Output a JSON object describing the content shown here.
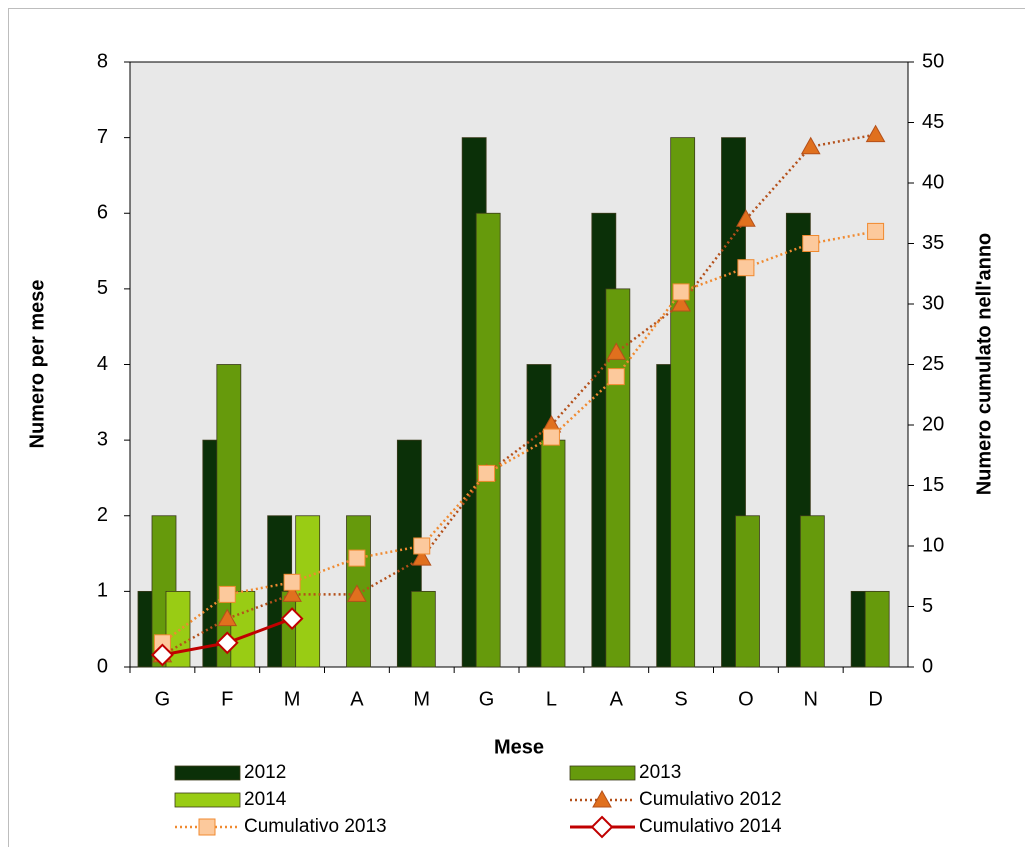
{
  "chart_data": {
    "type": "bar",
    "xlabel": "Mese",
    "ylabel": "Numero per mese",
    "y2label": "Numero cumulato nell'anno",
    "categories": [
      "G",
      "F",
      "M",
      "A",
      "M",
      "G",
      "L",
      "A",
      "S",
      "O",
      "N",
      "D"
    ],
    "ylim": [
      0,
      8
    ],
    "yticks": [
      0,
      1,
      2,
      3,
      4,
      5,
      6,
      7,
      8
    ],
    "y2lim": [
      0,
      50
    ],
    "y2ticks": [
      0,
      5,
      10,
      15,
      20,
      25,
      30,
      35,
      40,
      45,
      50
    ],
    "series": [
      {
        "name": "2012",
        "type": "bar",
        "color": "#0b3008",
        "values": [
          1,
          3,
          2,
          0,
          3,
          7,
          4,
          6,
          4,
          7,
          6,
          1
        ]
      },
      {
        "name": "2013",
        "type": "bar",
        "color": "#669a0c",
        "values": [
          2,
          4,
          1,
          2,
          1,
          6,
          3,
          5,
          7,
          2,
          2,
          1
        ]
      },
      {
        "name": "2014",
        "type": "bar",
        "color": "#99cc14",
        "values": [
          1,
          1,
          2,
          null,
          null,
          null,
          null,
          null,
          null,
          null,
          null,
          null
        ]
      },
      {
        "name": "Cumulativo 2012",
        "type": "line",
        "axis": "y2",
        "marker": "triangle",
        "color": "#b4501a",
        "marker_color": "#e0701e",
        "dash": true,
        "values": [
          1,
          4,
          6,
          6,
          9,
          16,
          20,
          26,
          30,
          37,
          43,
          44
        ]
      },
      {
        "name": "Cumulativo 2013",
        "type": "line",
        "axis": "y2",
        "marker": "square",
        "color": "#f08a30",
        "marker_color": "#fcc99c",
        "dash": true,
        "values": [
          2,
          6,
          7,
          9,
          10,
          16,
          19,
          24,
          31,
          33,
          35,
          36
        ]
      },
      {
        "name": "Cumulativo 2014",
        "type": "line",
        "axis": "y2",
        "marker": "diamond",
        "color": "#c00000",
        "marker_color": "#ffffff",
        "dash": false,
        "values": [
          1,
          2,
          4,
          null,
          null,
          null,
          null,
          null,
          null,
          null,
          null,
          null
        ]
      }
    ]
  }
}
